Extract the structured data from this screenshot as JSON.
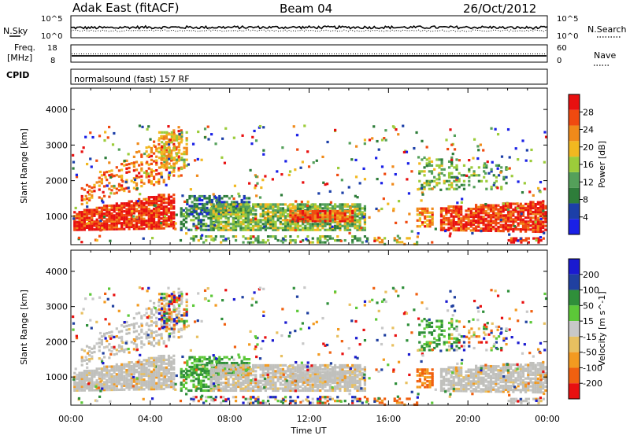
{
  "header": {
    "station": "Adak East (fitACF)",
    "beam": "Beam 04",
    "date": "26/Oct/2012"
  },
  "panels": {
    "nsky_label": "N.Sky",
    "nsky_ticks": [
      "10^5",
      "10^0"
    ],
    "nsearch_label": "N.Search",
    "nsearch_ticks": [
      "10^5",
      "10^0"
    ],
    "freq_label_1": "Freq.",
    "freq_label_2": "[MHz]",
    "freq_ticks": [
      "18",
      "8"
    ],
    "nave_label": "Nave",
    "nave_ticks": [
      "60",
      "0"
    ],
    "cpid_label": "CPID",
    "cpid_text": "normalsound (fast) 157 RF"
  },
  "colors": {
    "power": [
      "#1a20e6",
      "#1c3fa8",
      "#2e7d3a",
      "#54a05a",
      "#9ccc3a",
      "#f2b820",
      "#f08a1a",
      "#f04a10",
      "#e81010"
    ],
    "velocity": [
      "#e81010",
      "#f06010",
      "#f39a20",
      "#e8c060",
      "#c8c8c8",
      "#5cc838",
      "#2f8f3a",
      "#2040a0",
      "#1a1ad0"
    ],
    "ground_scatter": "#c0c0bc"
  },
  "chart_data": [
    {
      "type": "heatmap",
      "name": "power",
      "xlabel": "Time UT",
      "ylabel": "Slant Range [km]",
      "x_ticks": [
        "00:00",
        "04:00",
        "08:00",
        "12:00",
        "16:00",
        "20:00",
        "00:00"
      ],
      "xlim_hours": [
        0,
        24
      ],
      "ylim": [
        200,
        4600
      ],
      "y_ticks": [
        1000,
        2000,
        3000,
        4000
      ],
      "colorbar": {
        "label": "Power [dB]",
        "range": [
          0,
          32
        ],
        "ticks": [
          4,
          8,
          12,
          16,
          20,
          24,
          28
        ]
      }
    },
    {
      "type": "heatmap",
      "name": "velocity",
      "xlabel": "Time UT",
      "ylabel": "Slant Range [km]",
      "x_ticks": [
        "00:00",
        "04:00",
        "08:00",
        "12:00",
        "16:00",
        "20:00",
        "00:00"
      ],
      "xlim_hours": [
        0,
        24
      ],
      "ylim": [
        200,
        4600
      ],
      "y_ticks": [
        1000,
        2000,
        3000,
        4000
      ],
      "colorbar": {
        "label": "Velocity [m s^-1]",
        "levels": [
          "200",
          "100",
          "50",
          "15",
          "-15",
          "-50",
          "-100",
          "-200"
        ]
      }
    }
  ]
}
